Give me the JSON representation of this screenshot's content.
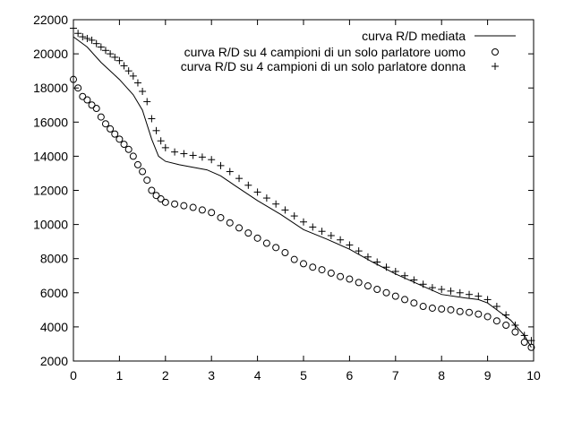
{
  "chart_data": {
    "type": "line",
    "title": "",
    "xlabel": "",
    "ylabel": "",
    "xlim": [
      0,
      10
    ],
    "ylim": [
      2000,
      22000
    ],
    "grid": false,
    "legend_position": "top-right",
    "x_ticks": [
      0,
      1,
      2,
      3,
      4,
      5,
      6,
      7,
      8,
      9,
      10
    ],
    "y_ticks": [
      2000,
      4000,
      6000,
      8000,
      10000,
      12000,
      14000,
      16000,
      18000,
      20000,
      22000
    ],
    "series": [
      {
        "name": "curva R/D mediata",
        "style": "line",
        "color": "#000000",
        "points": [
          [
            0,
            21000
          ],
          [
            0.3,
            20400
          ],
          [
            0.6,
            19500
          ],
          [
            1.0,
            18500
          ],
          [
            1.3,
            17600
          ],
          [
            1.5,
            16700
          ],
          [
            1.7,
            15000
          ],
          [
            1.85,
            14000
          ],
          [
            2.0,
            13700
          ],
          [
            2.3,
            13500
          ],
          [
            2.6,
            13350
          ],
          [
            2.9,
            13200
          ],
          [
            3.2,
            12850
          ],
          [
            3.5,
            12300
          ],
          [
            4.0,
            11400
          ],
          [
            4.5,
            10600
          ],
          [
            5.0,
            9700
          ],
          [
            5.5,
            9150
          ],
          [
            6.0,
            8550
          ],
          [
            6.5,
            7800
          ],
          [
            7.0,
            7100
          ],
          [
            7.5,
            6500
          ],
          [
            8.0,
            5900
          ],
          [
            8.5,
            5700
          ],
          [
            8.8,
            5600
          ],
          [
            9.0,
            5400
          ],
          [
            9.2,
            5000
          ],
          [
            9.5,
            4400
          ],
          [
            9.8,
            3500
          ],
          [
            9.95,
            2800
          ]
        ]
      },
      {
        "name": "curva R/D su 4 campioni di un solo parlatore uomo",
        "style": "circle",
        "color": "#000000",
        "points": [
          [
            0,
            18500
          ],
          [
            0.1,
            18000
          ],
          [
            0.2,
            17500
          ],
          [
            0.3,
            17300
          ],
          [
            0.4,
            17000
          ],
          [
            0.5,
            16800
          ],
          [
            0.6,
            16300
          ],
          [
            0.7,
            15900
          ],
          [
            0.8,
            15600
          ],
          [
            0.9,
            15300
          ],
          [
            1.0,
            15000
          ],
          [
            1.1,
            14700
          ],
          [
            1.2,
            14400
          ],
          [
            1.3,
            14000
          ],
          [
            1.4,
            13500
          ],
          [
            1.5,
            13100
          ],
          [
            1.6,
            12600
          ],
          [
            1.7,
            12000
          ],
          [
            1.8,
            11700
          ],
          [
            1.9,
            11500
          ],
          [
            2.0,
            11300
          ],
          [
            2.2,
            11200
          ],
          [
            2.4,
            11100
          ],
          [
            2.6,
            11000
          ],
          [
            2.8,
            10850
          ],
          [
            3.0,
            10700
          ],
          [
            3.2,
            10400
          ],
          [
            3.4,
            10100
          ],
          [
            3.6,
            9800
          ],
          [
            3.8,
            9500
          ],
          [
            4.0,
            9200
          ],
          [
            4.2,
            8900
          ],
          [
            4.4,
            8650
          ],
          [
            4.6,
            8350
          ],
          [
            4.8,
            7950
          ],
          [
            5.0,
            7700
          ],
          [
            5.2,
            7500
          ],
          [
            5.4,
            7350
          ],
          [
            5.6,
            7150
          ],
          [
            5.8,
            6950
          ],
          [
            6.0,
            6800
          ],
          [
            6.2,
            6600
          ],
          [
            6.4,
            6400
          ],
          [
            6.6,
            6200
          ],
          [
            6.8,
            6000
          ],
          [
            7.0,
            5800
          ],
          [
            7.2,
            5600
          ],
          [
            7.4,
            5400
          ],
          [
            7.6,
            5200
          ],
          [
            7.8,
            5100
          ],
          [
            8.0,
            5050
          ],
          [
            8.2,
            5000
          ],
          [
            8.4,
            4900
          ],
          [
            8.6,
            4850
          ],
          [
            8.8,
            4750
          ],
          [
            9.0,
            4600
          ],
          [
            9.2,
            4350
          ],
          [
            9.4,
            4100
          ],
          [
            9.6,
            3700
          ],
          [
            9.8,
            3100
          ],
          [
            9.95,
            2800
          ]
        ]
      },
      {
        "name": "curva R/D su 4 campioni di un solo parlatore donna",
        "style": "plus",
        "color": "#000000",
        "points": [
          [
            0,
            21500
          ],
          [
            0.1,
            21200
          ],
          [
            0.2,
            21000
          ],
          [
            0.3,
            20900
          ],
          [
            0.4,
            20800
          ],
          [
            0.5,
            20600
          ],
          [
            0.6,
            20400
          ],
          [
            0.7,
            20200
          ],
          [
            0.8,
            20000
          ],
          [
            0.9,
            19800
          ],
          [
            1.0,
            19600
          ],
          [
            1.1,
            19300
          ],
          [
            1.2,
            19000
          ],
          [
            1.3,
            18700
          ],
          [
            1.4,
            18300
          ],
          [
            1.5,
            17800
          ],
          [
            1.6,
            17200
          ],
          [
            1.7,
            16200
          ],
          [
            1.8,
            15500
          ],
          [
            1.9,
            14900
          ],
          [
            2.0,
            14500
          ],
          [
            2.2,
            14250
          ],
          [
            2.4,
            14150
          ],
          [
            2.6,
            14050
          ],
          [
            2.8,
            13950
          ],
          [
            3.0,
            13800
          ],
          [
            3.2,
            13450
          ],
          [
            3.4,
            13100
          ],
          [
            3.6,
            12700
          ],
          [
            3.8,
            12300
          ],
          [
            4.0,
            11900
          ],
          [
            4.2,
            11550
          ],
          [
            4.4,
            11200
          ],
          [
            4.6,
            10850
          ],
          [
            4.8,
            10500
          ],
          [
            5.0,
            10150
          ],
          [
            5.2,
            9850
          ],
          [
            5.4,
            9600
          ],
          [
            5.6,
            9350
          ],
          [
            5.8,
            9100
          ],
          [
            6.0,
            8800
          ],
          [
            6.2,
            8450
          ],
          [
            6.4,
            8100
          ],
          [
            6.6,
            7800
          ],
          [
            6.8,
            7500
          ],
          [
            7.0,
            7250
          ],
          [
            7.2,
            7000
          ],
          [
            7.4,
            6750
          ],
          [
            7.6,
            6500
          ],
          [
            7.8,
            6300
          ],
          [
            8.0,
            6200
          ],
          [
            8.2,
            6100
          ],
          [
            8.4,
            6000
          ],
          [
            8.6,
            5900
          ],
          [
            8.8,
            5800
          ],
          [
            9.0,
            5600
          ],
          [
            9.2,
            5200
          ],
          [
            9.4,
            4700
          ],
          [
            9.6,
            4100
          ],
          [
            9.8,
            3500
          ],
          [
            9.95,
            3200
          ]
        ]
      }
    ]
  }
}
